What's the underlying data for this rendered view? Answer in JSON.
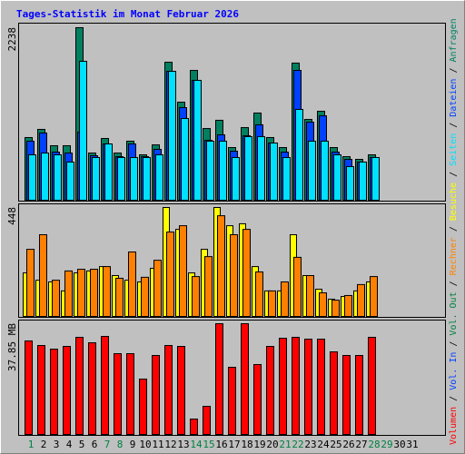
{
  "chart_data": {
    "type": "bar",
    "title": "Tages-Statistik im Monat Februar 2026",
    "categories": [
      "1",
      "2",
      "3",
      "4",
      "5",
      "6",
      "7",
      "8",
      "9",
      "10",
      "11",
      "12",
      "13",
      "14",
      "15",
      "16",
      "17",
      "18",
      "19",
      "20",
      "21",
      "22",
      "23",
      "24",
      "25",
      "26",
      "27",
      "28",
      "29",
      "30",
      "31"
    ],
    "category_colors": [
      "#008040",
      "#000000",
      "#000000",
      "#000000",
      "#000000",
      "#000000",
      "#008040",
      "#008040",
      "#000000",
      "#000000",
      "#000000",
      "#000000",
      "#000000",
      "#008040",
      "#008040",
      "#000000",
      "#000000",
      "#000000",
      "#000000",
      "#000000",
      "#008040",
      "#008040",
      "#000000",
      "#000000",
      "#000000",
      "#000000",
      "#000000",
      "#008040",
      "#008040",
      "#000000",
      "#000000"
    ],
    "legend_separator": " / ",
    "panels": [
      {
        "ylim": [
          0,
          2238
        ],
        "yticks": [
          2238
        ],
        "series": [
          {
            "name": "Anfragen",
            "color": "#008060",
            "values": [
              813,
              919,
              707,
              707,
              2238,
              612,
              801,
              612,
              766,
              589,
              718,
              1790,
              1272,
              1684,
              930,
              1037,
              683,
              942,
              1131,
              813,
              683,
              1779,
              1048,
              1154,
              683,
              565,
              530,
              589,
              null,
              null,
              null
            ]
          },
          {
            "name": "Dateien",
            "color": "#0040ff",
            "values": [
              766,
              872,
              624,
              612,
              883,
              577,
              730,
              565,
              730,
              565,
              660,
              1672,
              1201,
              1555,
              777,
              848,
              636,
              836,
              978,
              742,
              624,
              1684,
              1013,
              1095,
              624,
              530,
              495,
              554,
              null,
              null,
              null
            ]
          },
          {
            "name": "Seiten",
            "color": "#00e0ff",
            "values": [
              589,
              612,
              589,
              495,
              1802,
              554,
              730,
              554,
              554,
              554,
              589,
              1672,
              1060,
              1555,
              766,
              766,
              554,
              825,
              825,
              742,
              554,
              1178,
              766,
              766,
              589,
              436,
              495,
              554,
              null,
              null,
              null
            ]
          }
        ]
      },
      {
        "ylim": [
          0,
          448
        ],
        "yticks": [
          448
        ],
        "series": [
          {
            "name": "Besuche",
            "color": "#ffff00",
            "values": [
              179,
              149,
              142,
              105,
              179,
              187,
              205,
              168,
              149,
              142,
              198,
              448,
              358,
              179,
              276,
              448,
              373,
              381,
              205,
              105,
              105,
              336,
              168,
              112,
              71,
              82,
              105,
              142,
              null,
              null,
              null
            ]
          },
          {
            "name": "Rechner",
            "color": "#ff8000",
            "values": [
              276,
              336,
              149,
              187,
              194,
              194,
              205,
              157,
              265,
              161,
              231,
              347,
              373,
              164,
              246,
              414,
              336,
              358,
              183,
              105,
              142,
              243,
              168,
              97,
              67,
              86,
              131,
              164,
              null,
              null,
              null
            ]
          }
        ]
      },
      {
        "ylim": [
          0,
          37.85
        ],
        "yticks": [
          {
            "value": 37.85,
            "label": "37.85 MB"
          }
        ],
        "series": [
          {
            "name": "Vol. Out",
            "color": "#008040",
            "values": [
              null,
              null,
              null,
              null,
              null,
              null,
              null,
              null,
              null,
              null,
              null,
              null,
              null,
              null,
              null,
              null,
              null,
              null,
              null,
              null,
              null,
              null,
              null,
              null,
              null,
              null,
              null,
              null,
              null,
              null,
              null
            ]
          },
          {
            "name": "Vol. In",
            "color": "#0040ff",
            "values": [
              null,
              null,
              null,
              null,
              null,
              null,
              null,
              null,
              null,
              null,
              null,
              null,
              null,
              null,
              null,
              null,
              null,
              null,
              null,
              null,
              null,
              null,
              null,
              null,
              null,
              null,
              null,
              null,
              null,
              null,
              null
            ]
          },
          {
            "name": "Volumen",
            "color": "#ff0000",
            "values": [
              31.96,
              30.4,
              29.16,
              30.09,
              33.2,
              31.33,
              33.51,
              27.61,
              27.61,
              18.93,
              26.99,
              30.4,
              30.09,
              5.27,
              9.62,
              37.85,
              22.96,
              37.85,
              23.89,
              30.09,
              32.89,
              33.2,
              32.58,
              32.58,
              28.23,
              26.99,
              26.99,
              33.2,
              null,
              null,
              null
            ]
          }
        ]
      }
    ]
  }
}
